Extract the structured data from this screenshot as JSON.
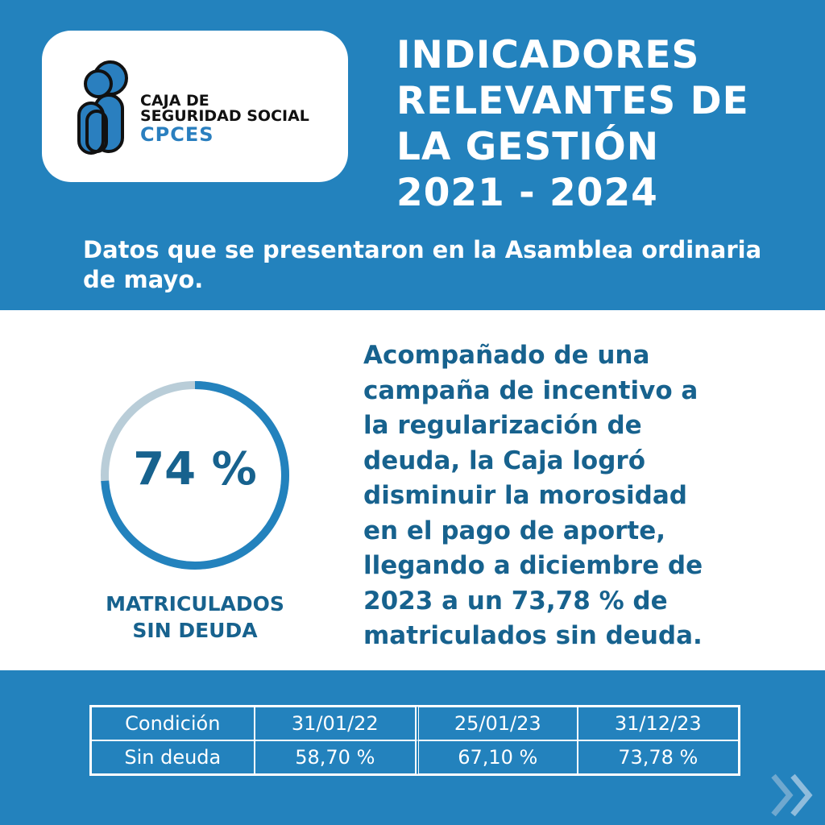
{
  "logo": {
    "line1": "CAJA DE",
    "line2": "SEGURIDAD SOCIAL",
    "line3": "CPCES",
    "icon": "people-icon"
  },
  "header": {
    "title_lines": [
      "INDICADORES",
      "RELEVANTES DE",
      "LA GESTIÓN",
      "2021 - 2024"
    ],
    "subtitle": "Datos que se presentaron en la Asamblea ordinaria de mayo."
  },
  "stat": {
    "value_text": "74 %",
    "progress": 0.74,
    "label_line1": "MATRICULADOS",
    "label_line2": "SIN DEUDA"
  },
  "description": {
    "lines": [
      "Acompañado de una",
      "campaña de incentivo a",
      "la regularización de",
      "deuda, la Caja logró",
      "disminuir la morosidad",
      "en el pago de aporte,",
      "llegando a diciembre de",
      "2023 a un 73,78 % de",
      "matriculados sin deuda."
    ]
  },
  "table": {
    "header": [
      "Condición",
      "31/01/22",
      "25/01/23",
      "31/12/23"
    ],
    "row": [
      "Sin deuda",
      "58,70 %",
      "67,10 %",
      "73,78 %"
    ]
  },
  "colors": {
    "primary": "#2382bd",
    "dark_text": "#17628e",
    "ring_track": "#b9cdd8",
    "white": "#ffffff"
  },
  "nav": {
    "next_icon": "double-chevron-right-icon"
  }
}
